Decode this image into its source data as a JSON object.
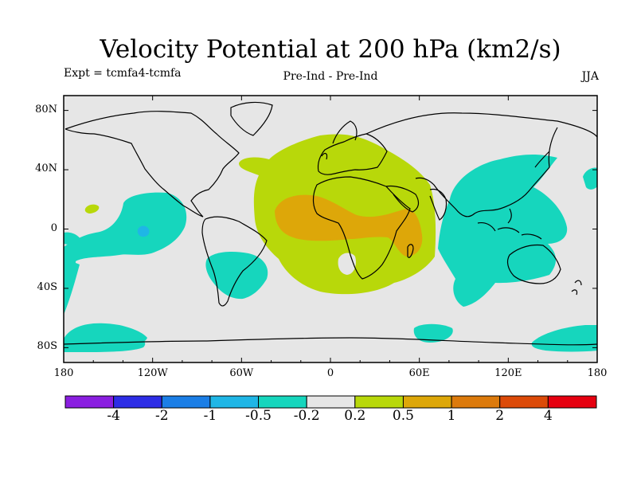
{
  "title": "Velocity Potential at 200 hPa (km2/s)",
  "subtitle_left": "Expt = tcmfa4-tcmfa",
  "subtitle_center": "Pre-Ind - Pre-Ind",
  "subtitle_right": "JJA",
  "chart_data": {
    "type": "contour-map",
    "variable": "Velocity Potential at 200 hPa",
    "units": "km2/s",
    "season": "JJA",
    "lon_range": [
      -180,
      180
    ],
    "lat_range": [
      -90,
      90
    ],
    "x_ticks": [
      "180",
      "120W",
      "60W",
      "0",
      "60E",
      "120E",
      "180"
    ],
    "y_ticks": [
      "80N",
      "40N",
      "0",
      "40S",
      "80S"
    ],
    "colorbar": {
      "labels": [
        "-4",
        "-2",
        "-1",
        "-0.5",
        "-0.2",
        "0.2",
        "0.5",
        "1",
        "2",
        "4"
      ],
      "colors": [
        "#8a1ee0",
        "#2d2de6",
        "#1b7ee6",
        "#1fb6e6",
        "#16d6bd",
        "#e6e6e6",
        "#b8d80a",
        "#dda709",
        "#dc7a0c",
        "#dc4a08",
        "#e60010"
      ]
    },
    "features": [
      {
        "region": "Africa / Atlantic / Europe",
        "range": "0.2 to 0.5"
      },
      {
        "region": "Central Africa / Arabian Sea",
        "range": "0.5 to 1"
      },
      {
        "region": "Maritime Continent / W Pacific",
        "range": "-0.5 to -0.2"
      },
      {
        "region": "Eastern Pacific",
        "range": "-0.5 to -0.2"
      },
      {
        "region": "Eastern Pacific minimum",
        "range": "-1 to -0.5"
      },
      {
        "region": "South Atlantic / S America",
        "range": "-0.5 to -0.2"
      },
      {
        "region": "Southern Ocean",
        "range": "-0.5 to -0.2"
      }
    ]
  }
}
